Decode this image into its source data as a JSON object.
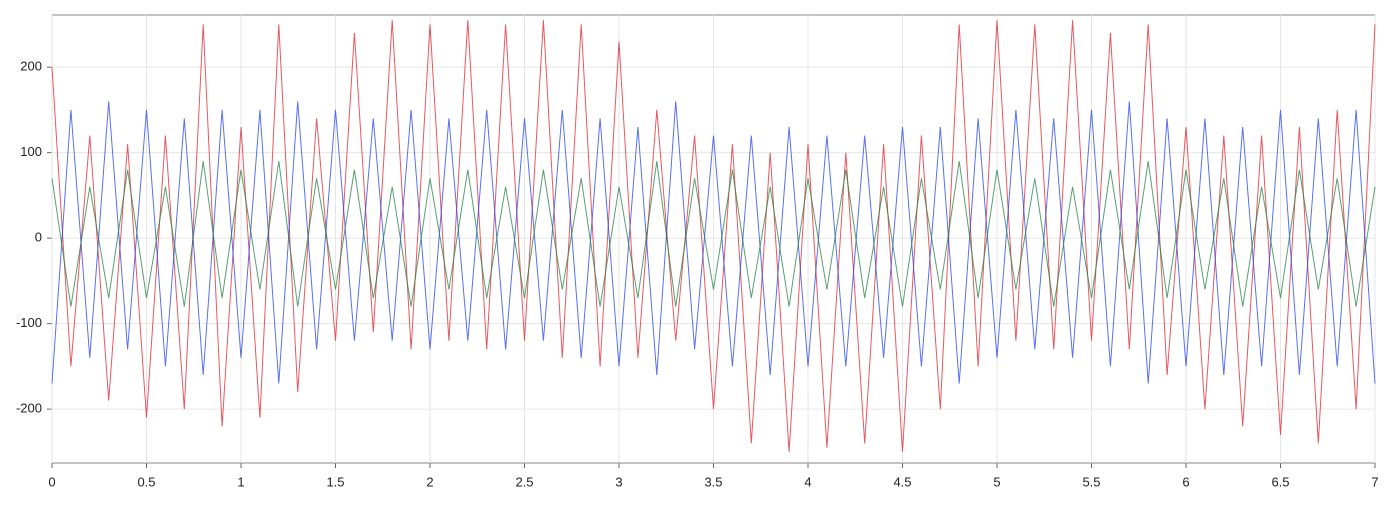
{
  "chart_data": {
    "type": "line",
    "x": [
      0,
      0.1,
      0.2,
      0.3,
      0.4,
      0.5,
      0.6,
      0.7,
      0.8,
      0.9,
      1,
      1.1,
      1.2,
      1.3,
      1.4,
      1.5,
      1.6,
      1.7,
      1.8,
      1.9,
      2,
      2.1,
      2.2,
      2.3,
      2.4,
      2.5,
      2.6,
      2.7,
      2.8,
      2.9,
      3,
      3.1,
      3.2,
      3.3,
      3.4,
      3.5,
      3.6,
      3.7,
      3.8,
      3.9,
      4,
      4.1,
      4.2,
      4.3,
      4.4,
      4.5,
      4.6,
      4.7,
      4.8,
      4.9,
      5,
      5.1,
      5.2,
      5.3,
      5.4,
      5.5,
      5.6,
      5.7,
      5.8,
      5.9,
      6,
      6.1,
      6.2,
      6.3,
      6.4,
      6.5,
      6.6,
      6.7,
      6.8,
      6.9,
      7
    ],
    "series": [
      {
        "color": "#e0202a",
        "values": [
          200,
          -150,
          120,
          -190,
          110,
          -210,
          120,
          -200,
          250,
          -220,
          130,
          -210,
          250,
          -180,
          140,
          -120,
          240,
          -110,
          255,
          -130,
          250,
          -120,
          255,
          -130,
          250,
          -120,
          255,
          -140,
          250,
          -150,
          230,
          -140,
          150,
          -120,
          120,
          -200,
          110,
          -240,
          100,
          -250,
          110,
          -245,
          100,
          -240,
          110,
          -250,
          120,
          -200,
          250,
          -150,
          255,
          -120,
          250,
          -130,
          255,
          -120,
          240,
          -130,
          250,
          -160,
          130,
          -200,
          120,
          -220,
          120,
          -230,
          130,
          -240,
          150,
          -200,
          250
        ]
      },
      {
        "color": "#2040f0",
        "values": [
          -170,
          150,
          -140,
          160,
          -130,
          150,
          -150,
          140,
          -160,
          150,
          -140,
          150,
          -170,
          160,
          -130,
          150,
          -120,
          140,
          -120,
          150,
          -130,
          140,
          -120,
          150,
          -130,
          140,
          -120,
          150,
          -140,
          140,
          -150,
          130,
          -160,
          160,
          -130,
          120,
          -150,
          120,
          -160,
          130,
          -150,
          120,
          -150,
          120,
          -140,
          130,
          -150,
          130,
          -170,
          140,
          -140,
          150,
          -130,
          140,
          -140,
          150,
          -150,
          160,
          -170,
          140,
          -150,
          140,
          -160,
          130,
          -150,
          150,
          -160,
          140,
          -150,
          150,
          -170
        ]
      },
      {
        "color": "#208040",
        "values": [
          70,
          -80,
          60,
          -70,
          80,
          -70,
          60,
          -80,
          90,
          -70,
          80,
          -60,
          90,
          -80,
          70,
          -60,
          80,
          -70,
          60,
          -80,
          70,
          -60,
          80,
          -70,
          60,
          -70,
          80,
          -60,
          70,
          -80,
          60,
          -70,
          90,
          -80,
          70,
          -60,
          80,
          -70,
          60,
          -80,
          70,
          -60,
          80,
          -70,
          60,
          -80,
          70,
          -60,
          90,
          -70,
          80,
          -60,
          70,
          -80,
          60,
          -70,
          80,
          -60,
          90,
          -70,
          80,
          -60,
          70,
          -80,
          60,
          -70,
          80,
          -60,
          70,
          -80,
          60
        ]
      }
    ],
    "xlim": [
      0,
      7
    ],
    "xticks": [
      0,
      0.5,
      1,
      1.5,
      2,
      2.5,
      3,
      3.5,
      4,
      4.5,
      5,
      5.5,
      6,
      6.5,
      7
    ],
    "ylim": [
      -263,
      261
    ],
    "yticks": [
      -200,
      -100,
      0,
      100,
      200
    ],
    "grid": true
  }
}
